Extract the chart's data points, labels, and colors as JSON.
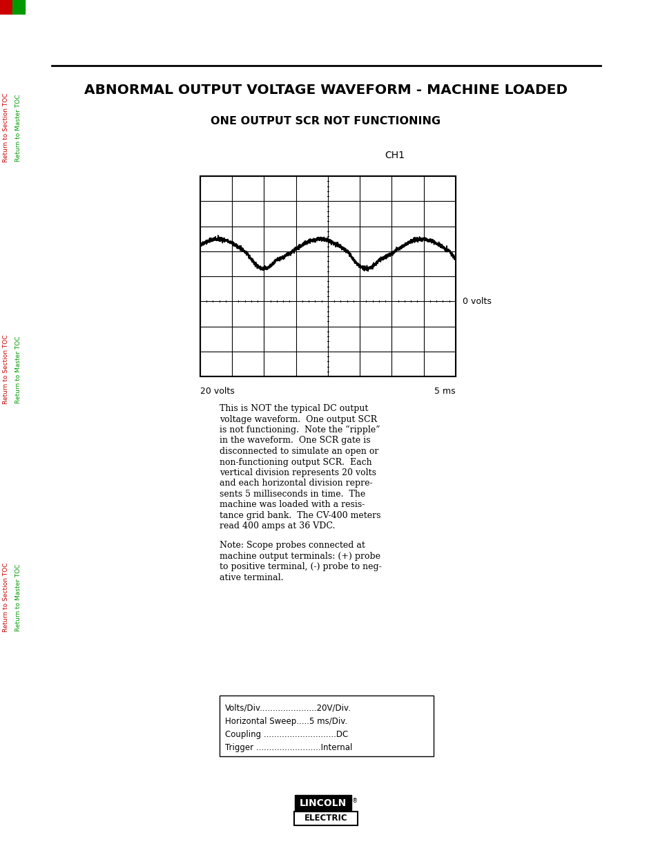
{
  "page_bg": "#ffffff",
  "title": "ABNORMAL OUTPUT VOLTAGE WAVEFORM - MACHINE LOADED",
  "subtitle": "ONE OUTPUT SCR NOT FUNCTIONING",
  "ch_label": "CH1",
  "scope_label_0volts": "0 volts",
  "scope_label_20volts": "20 volts",
  "scope_label_5ms": "5 ms",
  "description_lines": [
    "This is NOT the typical DC output",
    "voltage waveform.  One output SCR",
    "is not functioning.  Note the “ripple”",
    "in the waveform.  One SCR gate is",
    "disconnected to simulate an open or",
    "non-functioning output SCR.  Each",
    "vertical division represents 20 volts",
    "and each horizontal division repre-",
    "sents 5 milliseconds in time.  The",
    "machine was loaded with a resis-",
    "tance grid bank.  The CV-400 meters",
    "read 400 amps at 36 VDC."
  ],
  "note_lines": [
    "Note: Scope probes connected at",
    "machine output terminals: (+) probe",
    "to positive terminal, (-) probe to neg-",
    "ative terminal."
  ],
  "spec_lines": [
    "Volts/Div......................20V/Div.",
    "Horizontal Sweep.....5 ms/Div.",
    "Coupling ............................DC",
    "Trigger .........................Internal"
  ]
}
